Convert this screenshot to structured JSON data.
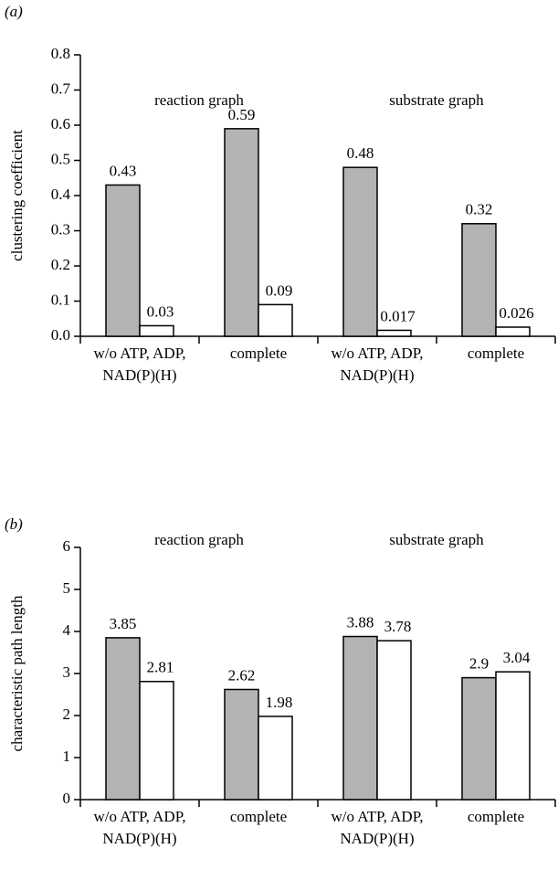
{
  "chart_data": [
    {
      "type": "bar",
      "panel_label": "(a)",
      "ylabel": "clustering coefficient",
      "categories": [
        [
          "w/o ATP, ADP,",
          "NAD(P)(H)"
        ],
        [
          "complete"
        ],
        [
          "w/o ATP, ADP,",
          "NAD(P)(H)"
        ],
        [
          "complete"
        ]
      ],
      "annotations": [
        "reaction graph",
        "substrate graph"
      ],
      "series": [
        {
          "color": "#b3b3b3",
          "values": [
            0.43,
            0.59,
            0.48,
            0.32
          ]
        },
        {
          "color": "#ffffff",
          "values": [
            0.03,
            0.09,
            0.017,
            0.026
          ]
        }
      ],
      "ylim": [
        0,
        0.8
      ],
      "yticks": [
        {
          "value": 0,
          "label": "0.0"
        },
        0.1,
        0.2,
        0.3,
        0.4,
        0.5,
        0.6,
        0.7,
        0.8
      ]
    },
    {
      "type": "bar",
      "panel_label": "(b)",
      "ylabel": "characteristic path length",
      "categories": [
        [
          "w/o ATP, ADP,",
          "NAD(P)(H)"
        ],
        [
          "complete"
        ],
        [
          "w/o ATP, ADP,",
          "NAD(P)(H)"
        ],
        [
          "complete"
        ]
      ],
      "annotations": [
        "reaction graph",
        "substrate graph"
      ],
      "series": [
        {
          "color": "#b3b3b3",
          "values": [
            3.85,
            2.62,
            3.88,
            2.9
          ]
        },
        {
          "color": "#ffffff",
          "values": [
            2.81,
            1.98,
            3.78,
            3.04
          ]
        }
      ],
      "ylim": [
        0,
        6
      ],
      "yticks": [
        0,
        1,
        2,
        3,
        4,
        5,
        6
      ]
    }
  ]
}
